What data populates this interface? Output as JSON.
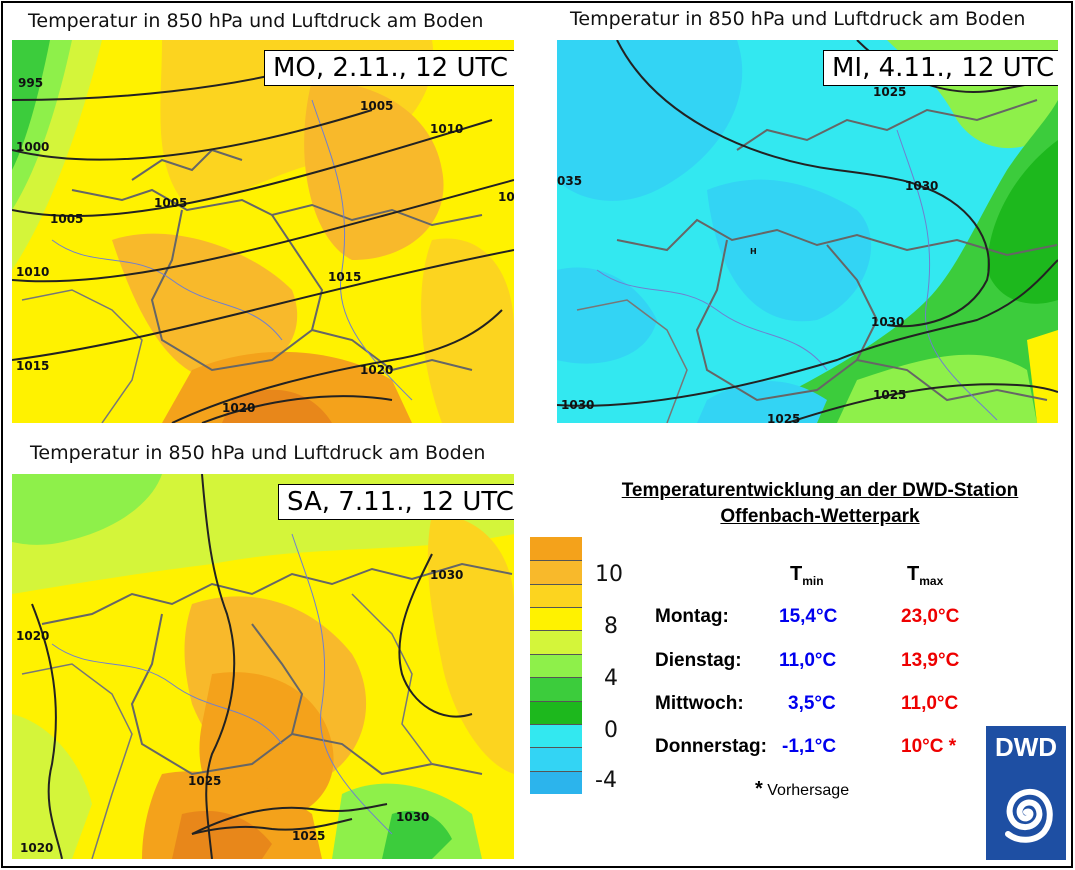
{
  "panels": [
    {
      "title": "Temperatur in 850 hPa und Luftdruck am Boden",
      "date": "MO, 2.11., 12 UTC",
      "iso_labels": [
        "995",
        "1000",
        "1005",
        "1005",
        "1005",
        "1010",
        "1010",
        "10",
        "1015",
        "1015",
        "1020",
        "1020"
      ]
    },
    {
      "title": "Temperatur in 850 hPa und Luftdruck am Boden",
      "date": "MI, 4.11., 12 UTC",
      "iso_labels": [
        "1025",
        "035",
        "1030",
        "1030",
        "1030",
        "1025",
        "1025",
        "H"
      ]
    },
    {
      "title": "Temperatur in 850 hPa und Luftdruck am Boden",
      "date": "SA, 7.11., 12 UTC",
      "iso_labels": [
        "1030",
        "1020",
        "1025",
        "1025",
        "1030",
        "1020"
      ]
    }
  ],
  "legend": {
    "ticks": [
      "10",
      "8",
      "4",
      "0",
      "-4"
    ],
    "colors": [
      "#f4a21b",
      "#f8b92b",
      "#fcd41f",
      "#fff200",
      "#d4f53a",
      "#8ef04a",
      "#3ccc3c",
      "#1db81d",
      "#33e8f0",
      "#33d4f4",
      "#2cb4ec"
    ]
  },
  "station": {
    "title_line1": "Temperaturentwicklung an der DWD-Station",
    "title_line2": "Offenbach-Wetterpark",
    "header_tmin": "T",
    "header_tmin_sub": "min",
    "header_tmax": "T",
    "header_tmax_sub": "max",
    "rows": [
      {
        "day": "Montag:",
        "tmin": "15,4°C",
        "tmax": "23,0°C"
      },
      {
        "day": "Dienstag:",
        "tmin": "11,0°C",
        "tmax": "13,9°C"
      },
      {
        "day": "Mittwoch:",
        "tmin": "3,5°C",
        "tmax": "11,0°C"
      },
      {
        "day": "Donnerstag:",
        "tmin": "-1,1°C",
        "tmax": "10°C *"
      }
    ],
    "footnote_star": "*",
    "footnote_text": "Vorhersage"
  },
  "logo": {
    "text": "DWD",
    "color": "#1e4fa3"
  }
}
